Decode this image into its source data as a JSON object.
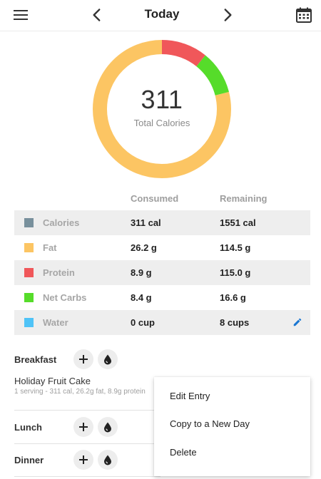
{
  "header": {
    "title": "Today",
    "menu_icon": "hamburger-menu-icon",
    "prev_icon": "chevron-left-icon",
    "next_icon": "chevron-right-icon",
    "calendar_icon": "calendar-icon"
  },
  "summary": {
    "total_value": "311",
    "total_label": "Total Calories",
    "ring_segments": [
      {
        "name": "Protein",
        "fraction": 0.108,
        "color": "#f0575a"
      },
      {
        "name": "Net Carbs",
        "fraction": 0.102,
        "color": "#56dc2a"
      },
      {
        "name": "Fat",
        "fraction": 0.79,
        "color": "#fcc563"
      }
    ]
  },
  "table": {
    "consumed_header": "Consumed",
    "remaining_header": "Remaining",
    "rows": [
      {
        "label": "Calories",
        "consumed": "311 cal",
        "remaining": "1551 cal",
        "color": "#78909c"
      },
      {
        "label": "Fat",
        "consumed": "26.2 g",
        "remaining": "114.5 g",
        "color": "#fcc563"
      },
      {
        "label": "Protein",
        "consumed": "8.9 g",
        "remaining": "115.0 g",
        "color": "#f0575a"
      },
      {
        "label": "Net Carbs",
        "consumed": "8.4 g",
        "remaining": "16.6 g",
        "color": "#56dc2a"
      },
      {
        "label": "Water",
        "consumed": "0 cup",
        "remaining": "8 cups",
        "color": "#4fc3f7"
      }
    ],
    "edit_icon": "pencil-icon"
  },
  "meals": [
    {
      "title": "Breakfast"
    },
    {
      "title": "Lunch"
    },
    {
      "title": "Dinner"
    }
  ],
  "breakfast_entry": {
    "name": "Holiday Fruit Cake",
    "detail": "1 serving - 311 cal, 26.2g fat, 8.9g protein"
  },
  "context_menu": {
    "items": [
      "Edit Entry",
      "Copy to a New Day",
      "Delete"
    ]
  },
  "colors": {
    "accent_blue": "#1976d2",
    "row_shade": "#eeeeee"
  }
}
